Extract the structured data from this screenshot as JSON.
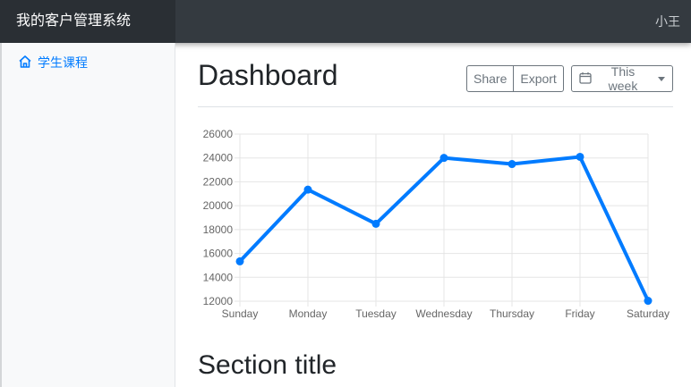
{
  "app": {
    "brand": "我的客户管理系统",
    "user": "小王"
  },
  "sidebar": {
    "items": [
      {
        "label": "学生课程",
        "icon": "home-icon"
      }
    ]
  },
  "main": {
    "title": "Dashboard",
    "buttons": {
      "share": "Share",
      "export": "Export",
      "range": "This week"
    },
    "section_title": "Section title"
  },
  "colors": {
    "accent": "#007bff",
    "topbar": "#343a40"
  },
  "chart_data": {
    "type": "line",
    "categories": [
      "Sunday",
      "Monday",
      "Tuesday",
      "Wednesday",
      "Thursday",
      "Friday",
      "Saturday"
    ],
    "series": [
      {
        "values": [
          15339,
          21345,
          18483,
          24003,
          23489,
          24092,
          12034
        ]
      }
    ],
    "ylim": [
      12000,
      26000
    ],
    "yticks": [
      "12000",
      "14000",
      "16000",
      "18000",
      "20000",
      "22000",
      "24000",
      "26000"
    ],
    "grid": true,
    "legend": "none"
  }
}
